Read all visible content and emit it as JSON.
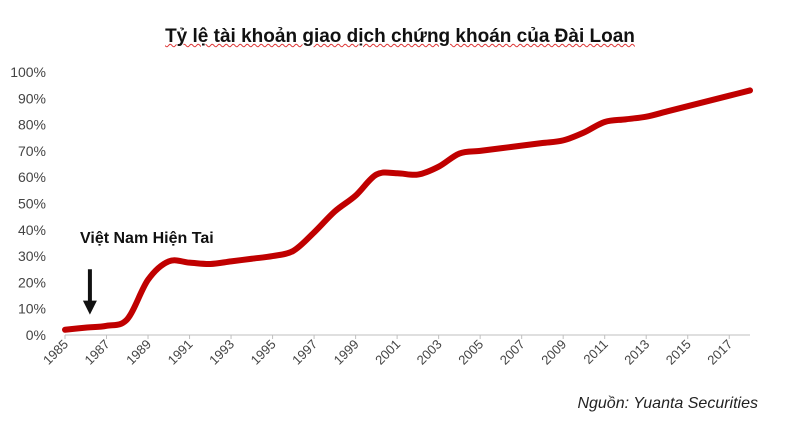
{
  "chart_data": {
    "type": "line",
    "title": "Tỷ lệ tài khoản giao dịch chứng khoán của Đài Loan",
    "xlabel": "",
    "ylabel": "",
    "ylim": [
      0,
      100
    ],
    "y_ticks": [
      "0%",
      "10%",
      "20%",
      "30%",
      "40%",
      "50%",
      "60%",
      "70%",
      "80%",
      "90%",
      "100%"
    ],
    "x_ticks": [
      "1985",
      "1987",
      "1989",
      "1991",
      "1993",
      "1995",
      "1997",
      "1999",
      "2001",
      "2003",
      "2005",
      "2007",
      "2009",
      "2011",
      "2013",
      "2015",
      "2017"
    ],
    "grid": false,
    "series": [
      {
        "color": "#c00000",
        "x": [
          1985,
          1986,
          1987,
          1988,
          1989,
          1990,
          1991,
          1992,
          1993,
          1994,
          1995,
          1996,
          1997,
          1998,
          1999,
          2000,
          2001,
          2002,
          2003,
          2004,
          2005,
          2006,
          2007,
          2008,
          2009,
          2010,
          2011,
          2012,
          2013,
          2014,
          2015,
          2016,
          2017,
          2018
        ],
        "values": [
          2,
          2.8,
          3.5,
          6,
          21,
          28,
          27.5,
          27,
          28,
          29,
          30,
          32,
          39,
          47,
          53,
          61,
          61.5,
          61,
          64,
          69,
          70,
          71,
          72,
          73,
          74,
          77,
          81,
          82,
          83,
          85,
          87,
          89,
          91,
          93
        ]
      }
    ],
    "annotations": [
      {
        "text": "Việt Nam Hiện Tai",
        "x": 1986.2,
        "arrow_from": 25,
        "arrow_to": 8.5
      }
    ],
    "source": "Nguồn: Yuanta Securities"
  }
}
